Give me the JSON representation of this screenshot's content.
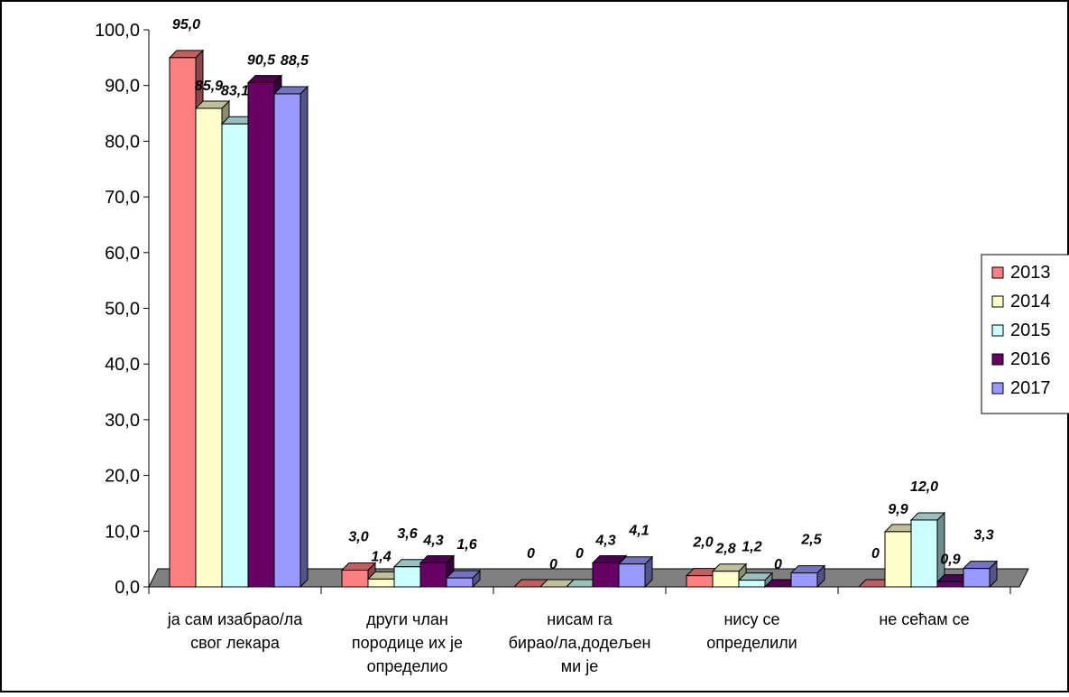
{
  "chart_data": {
    "type": "bar",
    "categories": [
      [
        "ја сам изабрао/ла",
        "свог лекара"
      ],
      [
        "други члан",
        "породице их је",
        "определио"
      ],
      [
        "нисам га",
        "бирао/ла,додељен",
        "ми је"
      ],
      [
        "нису се",
        "определили"
      ],
      [
        "не сећам се"
      ]
    ],
    "series": [
      {
        "name": "2013",
        "color": "#ff8080",
        "values": [
          95.0,
          3.0,
          0,
          2.0,
          0
        ]
      },
      {
        "name": "2014",
        "color": "#ffffcc",
        "values": [
          85.9,
          1.4,
          0,
          2.8,
          9.9
        ]
      },
      {
        "name": "2015",
        "color": "#ccffff",
        "values": [
          83.1,
          3.6,
          0,
          1.2,
          12.0
        ]
      },
      {
        "name": "2016",
        "color": "#660066",
        "values": [
          90.5,
          4.3,
          4.3,
          0,
          0.9
        ]
      },
      {
        "name": "2017",
        "color": "#9999ff",
        "values": [
          88.5,
          1.6,
          4.1,
          2.5,
          3.3
        ]
      }
    ],
    "data_labels": [
      [
        "95,0",
        "85,9",
        "83,1",
        "90,5",
        "88,5"
      ],
      [
        "3,0",
        "1,4",
        "3,6",
        "4,3",
        "1,6"
      ],
      [
        "0",
        "0",
        "0",
        "4,3",
        "4,1"
      ],
      [
        "2,0",
        "2,8",
        "1,2",
        "0",
        "2,5"
      ],
      [
        "0",
        "9,9",
        "12,0",
        "0,9",
        "3,3"
      ]
    ],
    "y_ticks": [
      "0,0",
      "10,0",
      "20,0",
      "30,0",
      "40,0",
      "50,0",
      "60,0",
      "70,0",
      "80,0",
      "90,0",
      "100,0"
    ],
    "ylim": [
      0,
      100
    ],
    "legend_position": "right",
    "grid": false,
    "style": "3d-clustered-bar"
  }
}
